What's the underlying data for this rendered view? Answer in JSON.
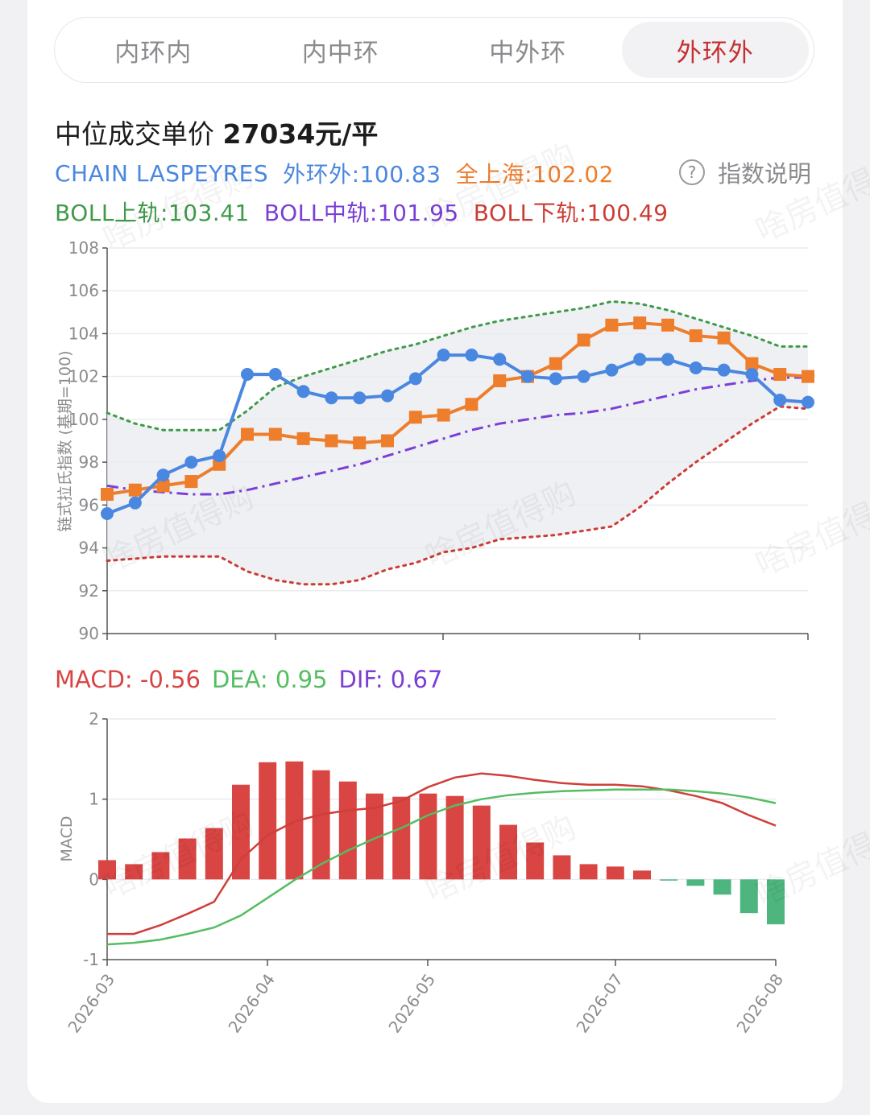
{
  "tabs": [
    {
      "label": "内环内",
      "active": false
    },
    {
      "label": "内中环",
      "active": false
    },
    {
      "label": "中外环",
      "active": false
    },
    {
      "label": "外环外",
      "active": true
    }
  ],
  "header": {
    "title_prefix": "中位成交单价 ",
    "price": "27034元/平"
  },
  "legend": {
    "chain": "CHAIN LASPEYRES",
    "outer": "外环外:100.83",
    "sh": "全上海:102.02",
    "help": "指数说明",
    "boll_up": "BOLL上轨:103.41",
    "boll_mid": "BOLL中轨:101.95",
    "boll_low": "BOLL下轨:100.49"
  },
  "macd_legend": {
    "macd": "MACD: -0.56",
    "dea": "DEA: 0.95",
    "dif": "DIF: 0.67"
  },
  "watermark": "啥房值得购",
  "colors": {
    "blue": "#4a87e0",
    "orange": "#ee7d2c",
    "green": "#3f9a4a",
    "purple": "#7a3fd6",
    "red": "#cc3c34",
    "macd_up": "#d84543",
    "macd_down": "#4fb57f",
    "dif_line": "#cf3f3a",
    "dea_line": "#55bd62"
  },
  "chart_data": [
    {
      "type": "line",
      "ylabel": "链式拉氏指数 (基期=100)",
      "ylim": [
        90,
        108
      ],
      "yticks": [
        90,
        92,
        94,
        96,
        98,
        100,
        102,
        104,
        106,
        108
      ],
      "series": [
        {
          "name": "外环外",
          "values": [
            95.6,
            96.1,
            97.4,
            98.0,
            98.3,
            102.1,
            102.1,
            101.3,
            101.0,
            101.0,
            101.1,
            101.9,
            103.0,
            103.0,
            102.8,
            102.0,
            101.9,
            102.0,
            102.3,
            102.8,
            102.8,
            102.4,
            102.3,
            102.1,
            100.9,
            100.8
          ]
        },
        {
          "name": "全上海",
          "values": [
            96.5,
            96.7,
            96.9,
            97.1,
            97.9,
            99.3,
            99.3,
            99.1,
            99.0,
            98.9,
            99.0,
            100.1,
            100.2,
            100.7,
            101.8,
            102.0,
            102.6,
            103.7,
            104.4,
            104.5,
            104.4,
            103.9,
            103.8,
            102.6,
            102.1,
            102.0
          ]
        },
        {
          "name": "BOLL上轨",
          "values": [
            100.3,
            99.8,
            99.5,
            99.5,
            99.5,
            100.4,
            101.5,
            102.0,
            102.4,
            102.8,
            103.2,
            103.5,
            103.9,
            104.3,
            104.6,
            104.8,
            105.0,
            105.2,
            105.5,
            105.4,
            105.1,
            104.7,
            104.3,
            103.9,
            103.4,
            103.4
          ]
        },
        {
          "name": "BOLL中轨",
          "values": [
            96.9,
            96.7,
            96.6,
            96.5,
            96.5,
            96.7,
            97.0,
            97.3,
            97.6,
            97.9,
            98.3,
            98.7,
            99.1,
            99.5,
            99.8,
            100.0,
            100.2,
            100.3,
            100.5,
            100.8,
            101.1,
            101.4,
            101.6,
            101.8,
            101.95,
            101.95
          ]
        },
        {
          "name": "BOLL下轨",
          "values": [
            93.4,
            93.5,
            93.6,
            93.6,
            93.6,
            92.9,
            92.5,
            92.3,
            92.3,
            92.5,
            93.0,
            93.3,
            93.8,
            94.0,
            94.4,
            94.5,
            94.6,
            94.8,
            95.0,
            95.9,
            97.0,
            98.0,
            98.9,
            99.8,
            100.6,
            100.49
          ]
        }
      ]
    },
    {
      "type": "bar",
      "ylabel": "MACD",
      "ylim": [
        -1,
        2
      ],
      "yticks": [
        -1,
        0,
        1,
        2
      ],
      "x_ticks": [
        "2026-03",
        "2026-04",
        "2026-05",
        "2026-07",
        "2026-08"
      ],
      "series": [
        {
          "name": "MACD",
          "values": [
            0.24,
            0.19,
            0.34,
            0.51,
            0.64,
            1.18,
            1.46,
            1.47,
            1.36,
            1.22,
            1.07,
            1.03,
            1.07,
            1.04,
            0.92,
            0.68,
            0.46,
            0.3,
            0.19,
            0.16,
            0.11,
            -0.01,
            -0.08,
            -0.19,
            -0.42,
            -0.56
          ]
        },
        {
          "name": "DIF",
          "values": [
            -0.68,
            -0.68,
            -0.57,
            -0.43,
            -0.28,
            0.25,
            0.55,
            0.72,
            0.81,
            0.86,
            0.89,
            0.98,
            1.15,
            1.27,
            1.32,
            1.29,
            1.24,
            1.2,
            1.18,
            1.18,
            1.16,
            1.11,
            1.04,
            0.95,
            0.8,
            0.67
          ]
        },
        {
          "name": "DEA",
          "values": [
            -0.81,
            -0.79,
            -0.75,
            -0.68,
            -0.6,
            -0.45,
            -0.23,
            -0.01,
            0.19,
            0.36,
            0.51,
            0.64,
            0.8,
            0.92,
            1.0,
            1.05,
            1.08,
            1.1,
            1.11,
            1.12,
            1.12,
            1.12,
            1.1,
            1.07,
            1.02,
            0.95
          ]
        }
      ]
    }
  ]
}
